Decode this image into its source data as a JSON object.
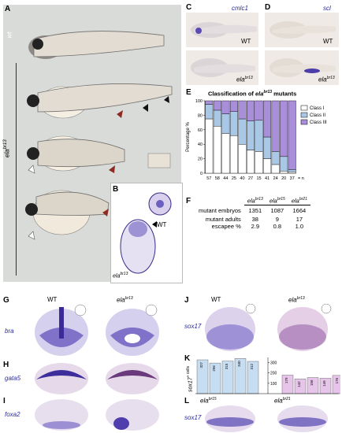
{
  "panels": {
    "A": {
      "label": "A",
      "wt": "wt",
      "mutant": "ela",
      "mutant_sup": "br13"
    },
    "B": {
      "label": "B",
      "wt": "WT",
      "mutant": "ela",
      "mutant_sup": "br13"
    },
    "C": {
      "label": "C",
      "gene": "cmlc1",
      "wt": "WT",
      "mutant": "ela",
      "mutant_sup": "br13"
    },
    "D": {
      "label": "D",
      "gene": "scl",
      "wt": "WT",
      "mutant": "ela",
      "mutant_sup": "br13"
    },
    "E": {
      "label": "E",
      "title_pre": "Classification of ",
      "title_gene": "ela",
      "title_sup": "br13",
      "title_post": " mutants"
    },
    "F": {
      "label": "F"
    },
    "G": {
      "label": "G",
      "gene": "bra",
      "wt": "WT",
      "mutant": "ela",
      "mutant_sup": "br13"
    },
    "H": {
      "label": "H",
      "gene": "gata5"
    },
    "I": {
      "label": "I",
      "gene": "foxa2"
    },
    "J": {
      "label": "J",
      "gene": "sox17",
      "wt": "WT",
      "mutant": "ela",
      "mutant_sup": "br13"
    },
    "K": {
      "label": "K",
      "ylabel_gene": "sox17",
      "ylabel_post": "+ cells"
    },
    "L": {
      "label": "L",
      "gene": "sox17",
      "m1": "ela",
      "m1_sup": "br15",
      "m2": "ela",
      "m2_sup": "br21"
    }
  },
  "table_F": {
    "headers": [
      {
        "gene": "ela",
        "sup": "br13"
      },
      {
        "gene": "ela",
        "sup": "br15"
      },
      {
        "gene": "ela",
        "sup": "br21"
      }
    ],
    "rows": [
      {
        "label": "mutant embryos",
        "values": [
          "1351",
          "1087",
          "1664"
        ]
      },
      {
        "label": "mutant adults",
        "values": [
          "38",
          "9",
          "17"
        ]
      },
      {
        "label": "escapee %",
        "values": [
          "2.9",
          "0.8",
          "1.0"
        ]
      }
    ]
  },
  "chart_data": [
    {
      "type": "bar",
      "title": "Classification of ela br13 mutants",
      "ylabel": "Percentage %",
      "ylim": [
        0,
        100
      ],
      "categories": [
        "57",
        "58",
        "44",
        "25",
        "40",
        "27",
        "15",
        "41",
        "24",
        "20",
        "37"
      ],
      "x_suffix": "= n",
      "yticks": [
        "0",
        "20",
        "40",
        "60",
        "80",
        "100"
      ],
      "series": [
        {
          "name": "Class I",
          "color": "#ffffff",
          "values": [
            75,
            65,
            55,
            52,
            40,
            32,
            30,
            20,
            12,
            3,
            2
          ]
        },
        {
          "name": "Class II",
          "color": "#a9c8e6",
          "values": [
            20,
            22,
            27,
            33,
            35,
            40,
            43,
            30,
            18,
            20,
            3
          ]
        },
        {
          "name": "Class III",
          "color": "#a98fd9",
          "values": [
            5,
            13,
            18,
            15,
            25,
            28,
            27,
            50,
            70,
            77,
            95
          ]
        }
      ],
      "legend": "right"
    },
    {
      "type": "bar",
      "ylabel": "sox17+ cells",
      "yticks": [
        "100",
        "200",
        "300"
      ],
      "series": [
        {
          "name": "WT",
          "color": "#c7ddf2",
          "values": [
            327,
            296,
            315,
            340,
            312
          ]
        },
        {
          "name": "ela br13",
          "color": "#e7c4ea",
          "values": [
            179,
            142,
            156,
            149,
            176
          ]
        }
      ]
    }
  ]
}
